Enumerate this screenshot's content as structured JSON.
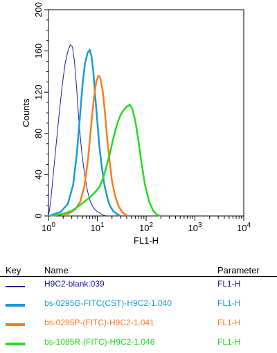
{
  "chart_data": {
    "type": "line",
    "xlabel": "FL1-H",
    "ylabel": "Counts",
    "x_scale": "log",
    "xlim": [
      1,
      10000
    ],
    "ylim": [
      0,
      200
    ],
    "x_ticks": [
      {
        "value": 1,
        "base": "10",
        "exp": "0"
      },
      {
        "value": 10,
        "base": "10",
        "exp": "1"
      },
      {
        "value": 100,
        "base": "10",
        "exp": "2"
      },
      {
        "value": 1000,
        "base": "10",
        "exp": "3"
      },
      {
        "value": 10000,
        "base": "10",
        "exp": "4"
      }
    ],
    "y_ticks": [
      "0",
      "40",
      "80",
      "120",
      "160",
      "200"
    ],
    "grid": false,
    "series": [
      {
        "name": "H9C2-blank.039",
        "color": "#1a1aa6",
        "x": [
          1.0,
          1.1,
          1.3,
          1.6,
          1.9,
          2.2,
          2.5,
          2.8,
          3.1,
          3.4,
          3.8,
          4.2,
          4.8,
          5.5,
          6.3,
          7.2,
          8.3,
          9.5,
          11,
          13,
          15
        ],
        "y": [
          0,
          12,
          48,
          92,
          126,
          148,
          160,
          166,
          164,
          150,
          122,
          92,
          62,
          40,
          24,
          14,
          8,
          5,
          3,
          1,
          0
        ]
      },
      {
        "name": "bs-0295G-FITC(CST)-H9C2-1.040",
        "color": "#1a9ad6",
        "x": [
          1.0,
          1.8,
          2.5,
          3.2,
          3.8,
          4.4,
          5.0,
          5.6,
          6.3,
          7.0,
          7.6,
          8.3,
          9.0,
          10,
          11,
          12.5,
          14,
          16,
          18,
          21,
          25,
          30
        ],
        "y": [
          0,
          4,
          12,
          30,
          60,
          96,
          128,
          148,
          158,
          161,
          155,
          140,
          118,
          92,
          68,
          46,
          30,
          18,
          10,
          5,
          2,
          0
        ]
      },
      {
        "name": "bs-0295P-(FITC)-H9C2-1.041",
        "color": "#ff7a1a",
        "x": [
          1.0,
          2.5,
          3.5,
          4.5,
          5.5,
          6.5,
          7.5,
          8.5,
          9.5,
          10.5,
          11.5,
          13,
          14.5,
          16,
          18,
          20,
          23,
          27,
          32,
          38,
          45
        ],
        "y": [
          0,
          2,
          6,
          14,
          30,
          56,
          88,
          114,
          130,
          136,
          134,
          120,
          98,
          74,
          52,
          34,
          20,
          10,
          4,
          1,
          0
        ]
      },
      {
        "name": "bs-1085R-(FITC)-H9C2-1.046",
        "color": "#22dd22",
        "x": [
          1.0,
          2.0,
          3.0,
          4.0,
          5.5,
          7.0,
          9.0,
          11,
          13,
          15,
          18,
          21,
          25,
          30,
          35,
          40,
          46,
          52,
          60,
          70,
          80,
          95,
          115,
          140,
          170,
          210
        ],
        "y": [
          0,
          2,
          5,
          9,
          14,
          18,
          23,
          28,
          36,
          46,
          60,
          74,
          88,
          98,
          103,
          106,
          108,
          104,
          92,
          72,
          52,
          30,
          14,
          5,
          1,
          0
        ]
      }
    ]
  },
  "legend": {
    "key_header": "Key",
    "name_header": "Name",
    "parameter_header": "Parameter",
    "rows": [
      {
        "name": "H9C2-blank.039",
        "parameter": "FL1-H",
        "color": "#1a1aa6"
      },
      {
        "name": "bs-0295G-FITC(CST)-H9C2-1.040",
        "parameter": "FL1-H",
        "color": "#1a9ad6"
      },
      {
        "name": "bs-0295P-(FITC)-H9C2-1.041",
        "parameter": "FL1-H",
        "color": "#ff7a1a"
      },
      {
        "name": "bs-1085R-(FITC)-H9C2-1.046",
        "parameter": "FL1-H",
        "color": "#22dd22"
      }
    ]
  }
}
